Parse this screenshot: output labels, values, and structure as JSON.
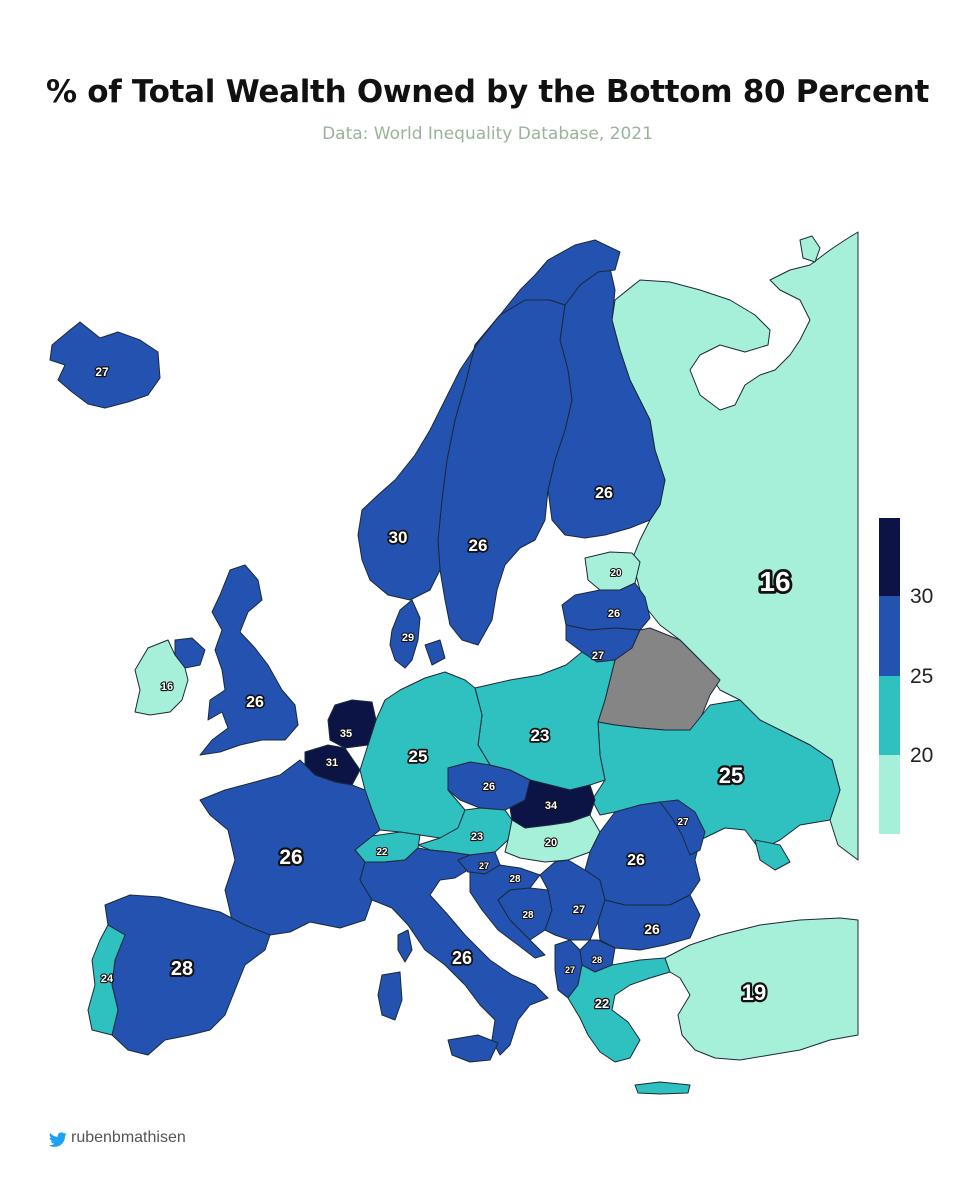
{
  "title": "% of Total Wealth Owned by the Bottom 80 Percent",
  "subtitle": "Data: World Inequality Database, 2021",
  "credit": {
    "handle": "rubenbmathisen",
    "icon": "twitter-bird-icon"
  },
  "colors": {
    "lt20": "#a6f0d9",
    "b20_25": "#2fc0c0",
    "b25_30": "#2352b0",
    "ge30": "#0b1445",
    "nodata": "#858585",
    "border": "#1a2a3a"
  },
  "legend": {
    "ticks": [
      "30",
      "25",
      "20"
    ]
  },
  "countries": [
    {
      "name": "Iceland",
      "value": "27"
    },
    {
      "name": "Norway",
      "value": "30"
    },
    {
      "name": "Sweden",
      "value": "26"
    },
    {
      "name": "Finland",
      "value": "26"
    },
    {
      "name": "Russia",
      "value": "16"
    },
    {
      "name": "Estonia",
      "value": "20"
    },
    {
      "name": "Latvia",
      "value": "26"
    },
    {
      "name": "Lithuania",
      "value": "27"
    },
    {
      "name": "Denmark",
      "value": "29"
    },
    {
      "name": "Ireland",
      "value": "16"
    },
    {
      "name": "United Kingdom",
      "value": "26"
    },
    {
      "name": "Netherlands",
      "value": "35"
    },
    {
      "name": "Belgium",
      "value": "31"
    },
    {
      "name": "Germany",
      "value": "25"
    },
    {
      "name": "Poland",
      "value": "23"
    },
    {
      "name": "Belarus",
      "value": ""
    },
    {
      "name": "Ukraine",
      "value": "25"
    },
    {
      "name": "Czechia",
      "value": "26"
    },
    {
      "name": "Slovakia",
      "value": "34"
    },
    {
      "name": "Austria",
      "value": "23"
    },
    {
      "name": "Hungary",
      "value": "20"
    },
    {
      "name": "Switzerland",
      "value": "22"
    },
    {
      "name": "France",
      "value": "26"
    },
    {
      "name": "Moldova",
      "value": "27"
    },
    {
      "name": "Romania",
      "value": "26"
    },
    {
      "name": "Slovenia",
      "value": "27"
    },
    {
      "name": "Croatia",
      "value": "28"
    },
    {
      "name": "Bosnia and Herzegovina",
      "value": "28"
    },
    {
      "name": "Serbia",
      "value": "27"
    },
    {
      "name": "Bulgaria",
      "value": "26"
    },
    {
      "name": "North Macedonia",
      "value": "28"
    },
    {
      "name": "Albania",
      "value": "27"
    },
    {
      "name": "Greece",
      "value": "22"
    },
    {
      "name": "Turkey",
      "value": "19"
    },
    {
      "name": "Italy",
      "value": "26"
    },
    {
      "name": "Spain",
      "value": "28"
    },
    {
      "name": "Portugal",
      "value": "24"
    }
  ]
}
